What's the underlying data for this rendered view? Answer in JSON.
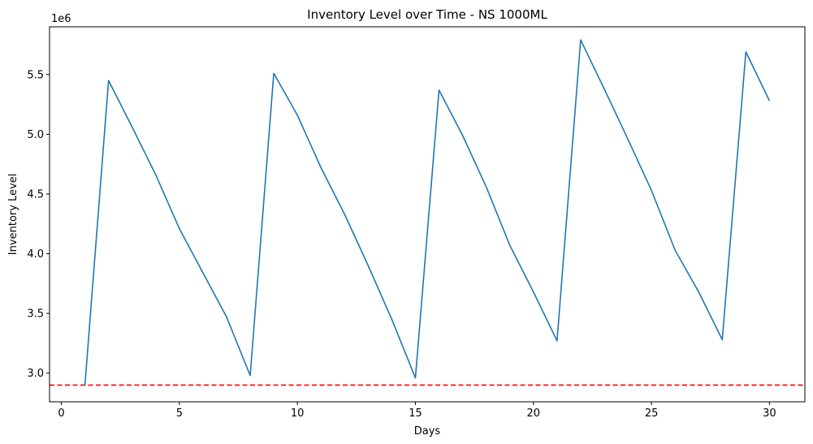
{
  "chart_data": {
    "type": "line",
    "title": "Inventory Level over Time - NS 1000ML",
    "xlabel": "Days",
    "ylabel": "Inventory Level",
    "y_offset_label": "1e6",
    "xlim": [
      -0.5,
      31.5
    ],
    "ylim": [
      2.76,
      5.9
    ],
    "x_ticks": [
      0,
      5,
      10,
      15,
      20,
      25,
      30
    ],
    "x_tick_labels": [
      "0",
      "5",
      "10",
      "15",
      "20",
      "25",
      "30"
    ],
    "y_ticks": [
      3.0,
      3.5,
      4.0,
      4.5,
      5.0,
      5.5
    ],
    "y_tick_labels": [
      "3.0",
      "3.5",
      "4.0",
      "4.5",
      "5.0",
      "5.5"
    ],
    "grid": false,
    "series": [
      {
        "color": "#1f77b4",
        "x": [
          1,
          2,
          3,
          4,
          5,
          6,
          7,
          8,
          9,
          10,
          11,
          12,
          13,
          14,
          15,
          16,
          17,
          18,
          19,
          20,
          21,
          22,
          23,
          24,
          25,
          26,
          27,
          28,
          29,
          30
        ],
        "y": [
          2.9,
          5.45,
          5.06,
          4.66,
          4.21,
          3.84,
          3.47,
          2.98,
          5.51,
          5.16,
          4.72,
          4.33,
          3.9,
          3.45,
          2.96,
          5.37,
          4.99,
          4.56,
          4.07,
          3.68,
          3.27,
          5.79,
          5.38,
          4.96,
          4.53,
          4.03,
          3.68,
          3.28,
          5.69,
          5.28
        ]
      }
    ],
    "reference_line": {
      "y": 2.9,
      "color": "#ff0000",
      "style": "dashed"
    }
  }
}
